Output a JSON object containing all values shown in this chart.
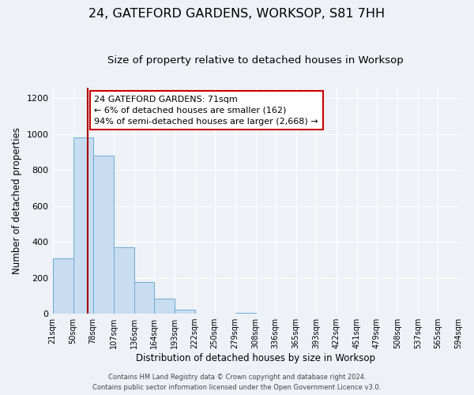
{
  "title": "24, GATEFORD GARDENS, WORKSOP, S81 7HH",
  "subtitle": "Size of property relative to detached houses in Worksop",
  "xlabel": "Distribution of detached houses by size in Worksop",
  "ylabel": "Number of detached properties",
  "bin_edges": [
    21,
    50,
    78,
    107,
    136,
    164,
    193,
    222,
    250,
    279,
    308,
    336,
    365,
    393,
    422,
    451,
    479,
    508,
    537,
    565,
    594
  ],
  "bar_heights": [
    310,
    980,
    880,
    370,
    175,
    85,
    22,
    0,
    0,
    5,
    0,
    0,
    0,
    0,
    0,
    0,
    0,
    0,
    0,
    0
  ],
  "bar_color": "#c8ddef",
  "bar_edge_color": "#6aaad4",
  "property_line_x": 71,
  "property_line_color": "#aa0000",
  "annotation_text": "24 GATEFORD GARDENS: 71sqm\n← 6% of detached houses are smaller (162)\n94% of semi-detached houses are larger (2,668) →",
  "annotation_box_color": "#ffffff",
  "annotation_box_edge_color": "#cc0000",
  "ylim": [
    0,
    1260
  ],
  "yticks": [
    0,
    200,
    400,
    600,
    800,
    1000,
    1200
  ],
  "background_color": "#eef2f7",
  "footer_line1": "Contains HM Land Registry data © Crown copyright and database right 2024.",
  "footer_line2": "Contains public sector information licensed under the Open Government Licence v3.0.",
  "title_fontsize": 11.5,
  "subtitle_fontsize": 9.5,
  "tick_label_fontsize": 7,
  "axis_label_fontsize": 8.5,
  "annotation_fontsize": 8,
  "footer_fontsize": 6
}
